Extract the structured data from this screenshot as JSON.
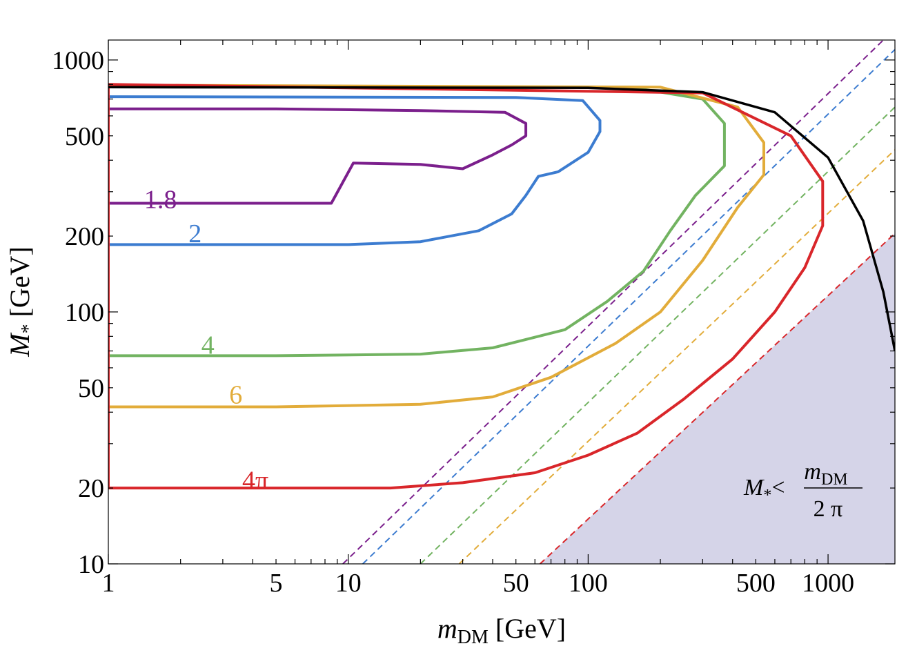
{
  "chart_data": {
    "type": "line",
    "title": "",
    "xscale": "log",
    "yscale": "log",
    "xlim": [
      1,
      1900
    ],
    "ylim": [
      10,
      1200
    ],
    "x_ticks": [
      {
        "value": 1,
        "label": "1"
      },
      {
        "value": 5,
        "label": "5"
      },
      {
        "value": 10,
        "label": "10"
      },
      {
        "value": 50,
        "label": "50"
      },
      {
        "value": 100,
        "label": "100"
      },
      {
        "value": 500,
        "label": "500"
      },
      {
        "value": 1000,
        "label": "1000"
      }
    ],
    "y_ticks": [
      {
        "value": 10,
        "label": "10"
      },
      {
        "value": 20,
        "label": "20"
      },
      {
        "value": 50,
        "label": "50"
      },
      {
        "value": 100,
        "label": "100"
      },
      {
        "value": 200,
        "label": "200"
      },
      {
        "value": 500,
        "label": "500"
      },
      {
        "value": 1000,
        "label": "1000"
      }
    ],
    "xlabel": {
      "main": "m",
      "sub": "DM",
      "unit": " [GeV]"
    },
    "ylabel": {
      "main": "M",
      "sub": "*",
      "unit": " [GeV]"
    },
    "series": [
      {
        "name": "1.8",
        "color": "#7b1f8c",
        "label": "1.8",
        "label_at": [
          1.65,
          280
        ],
        "points": [
          [
            1,
            270
          ],
          [
            3,
            270
          ],
          [
            8.5,
            270
          ],
          [
            10.5,
            390
          ],
          [
            20,
            385
          ],
          [
            30,
            370
          ],
          [
            40,
            420
          ],
          [
            48,
            460
          ],
          [
            55,
            500
          ],
          [
            55,
            560
          ],
          [
            45,
            620
          ],
          [
            20,
            630
          ],
          [
            5,
            640
          ],
          [
            1,
            640
          ]
        ],
        "diagonal": [
          [
            9.5,
            10
          ],
          [
            1700,
            1200
          ]
        ]
      },
      {
        "name": "2",
        "color": "#3c7cd0",
        "label": "2",
        "label_at": [
          2.3,
          205
        ],
        "points": [
          [
            1,
            185
          ],
          [
            3,
            185
          ],
          [
            10,
            185
          ],
          [
            20,
            190
          ],
          [
            35,
            210
          ],
          [
            48,
            245
          ],
          [
            55,
            290
          ],
          [
            62,
            345
          ],
          [
            75,
            360
          ],
          [
            100,
            430
          ],
          [
            112,
            520
          ],
          [
            112,
            575
          ],
          [
            95,
            690
          ],
          [
            50,
            710
          ],
          [
            10,
            712
          ],
          [
            1,
            715
          ]
        ],
        "diagonal": [
          [
            11.5,
            10
          ],
          [
            1900,
            1100
          ]
        ]
      },
      {
        "name": "4",
        "color": "#72b361",
        "label": "4",
        "label_at": [
          2.6,
          74
        ],
        "points": [
          [
            1,
            67
          ],
          [
            5,
            67
          ],
          [
            20,
            68
          ],
          [
            40,
            72
          ],
          [
            80,
            85
          ],
          [
            120,
            110
          ],
          [
            170,
            145
          ],
          [
            220,
            210
          ],
          [
            280,
            290
          ],
          [
            370,
            380
          ],
          [
            370,
            560
          ],
          [
            300,
            700
          ],
          [
            150,
            780
          ],
          [
            1,
            790
          ]
        ],
        "diagonal": [
          [
            20,
            10
          ],
          [
            1900,
            650
          ]
        ]
      },
      {
        "name": "6",
        "color": "#e2ac3a",
        "label": "6",
        "label_at": [
          3.4,
          47
        ],
        "points": [
          [
            1,
            42
          ],
          [
            5,
            42
          ],
          [
            20,
            43
          ],
          [
            40,
            46
          ],
          [
            70,
            55
          ],
          [
            130,
            75
          ],
          [
            200,
            100
          ],
          [
            300,
            160
          ],
          [
            420,
            260
          ],
          [
            540,
            350
          ],
          [
            540,
            470
          ],
          [
            420,
            650
          ],
          [
            200,
            780
          ],
          [
            1,
            795
          ]
        ],
        "diagonal": [
          [
            29,
            10
          ],
          [
            1900,
            440
          ]
        ]
      },
      {
        "name": "4π",
        "color": "#d9262a",
        "label": "4π",
        "label_at": [
          4.1,
          21.5
        ],
        "points": [
          [
            1,
            20
          ],
          [
            8,
            20
          ],
          [
            15,
            20
          ],
          [
            30,
            21
          ],
          [
            60,
            23
          ],
          [
            100,
            27
          ],
          [
            160,
            33
          ],
          [
            250,
            45
          ],
          [
            400,
            65
          ],
          [
            600,
            100
          ],
          [
            800,
            150
          ],
          [
            950,
            220
          ],
          [
            950,
            330
          ],
          [
            700,
            500
          ],
          [
            300,
            740
          ],
          [
            1,
            800
          ],
          [
            1,
            20
          ]
        ],
        "diagonal": [
          [
            63,
            10
          ],
          [
            1900,
            205
          ]
        ]
      },
      {
        "name": "black",
        "color": "#000000",
        "label": "",
        "label_at": null,
        "points": [
          [
            1,
            780
          ],
          [
            100,
            775
          ],
          [
            300,
            745
          ],
          [
            600,
            620
          ],
          [
            1000,
            410
          ],
          [
            1400,
            230
          ],
          [
            1700,
            120
          ],
          [
            1900,
            70
          ]
        ],
        "diagonal": null
      }
    ],
    "excluded_region": {
      "fill": "#d5d4e8",
      "label": {
        "lhs": "M",
        "lhs_sub": "*",
        "op": "<",
        "num": "m",
        "num_sub": "DM",
        "den": "2 π"
      }
    }
  }
}
